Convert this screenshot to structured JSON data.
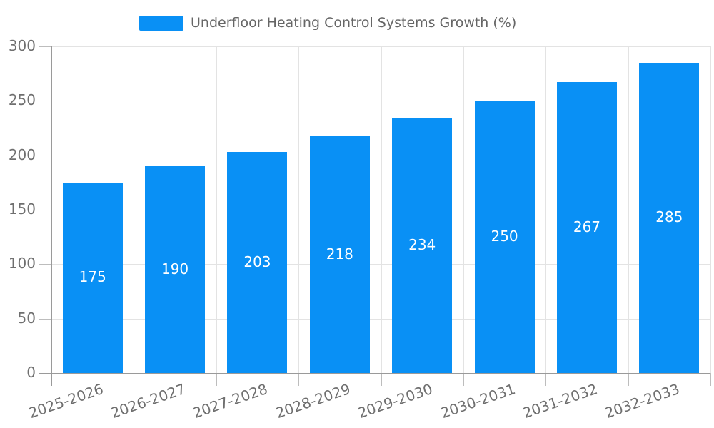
{
  "colors": {
    "bar": "#0990f5",
    "grid": "#e3e3e3",
    "axis": "#9a9a9a",
    "tick": "#bdbdbd",
    "tick_text": "#6f6f6f",
    "value_text": "#ffffff",
    "legend_text": "#666666"
  },
  "legend": {
    "label": "Underfloor Heating Control Systems Growth (%)"
  },
  "chart_data": {
    "type": "bar",
    "title": "Underfloor Heating Control Systems Growth (%)",
    "categories": [
      "2025-2026",
      "2026-2027",
      "2027-2028",
      "2028-2029",
      "2029-2030",
      "2030-2031",
      "2031-2032",
      "2032-2033"
    ],
    "values": [
      175,
      190,
      203,
      218,
      234,
      250,
      267,
      285
    ],
    "xlabel": "",
    "ylabel": "",
    "ylim": [
      0,
      300
    ],
    "ytick_step": 50,
    "yticks": [
      0,
      50,
      100,
      150,
      200,
      250,
      300
    ],
    "grid": true,
    "legend_position": "top-center",
    "bar_label_position": "inside-center",
    "x_label_rotation_deg": -19
  }
}
